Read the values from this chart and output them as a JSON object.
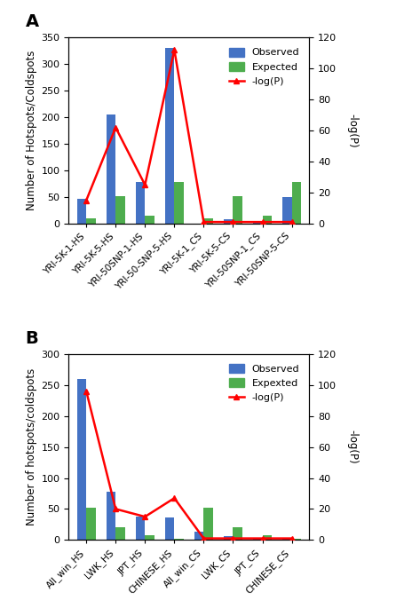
{
  "panel_A": {
    "label": "A",
    "categories": [
      "YRI-5K-1-HS",
      "YRI-5K-5-HS",
      "YRI-50SNP-1-HS",
      "YRI-50-SNP-5-HS",
      "YRI-5K-1_CS",
      "YRI-5K-5-CS",
      "YRI-50SNP-1_CS",
      "YRI-50SNP-5-CS"
    ],
    "observed": [
      47,
      205,
      78,
      330,
      0,
      8,
      5,
      50
    ],
    "expected": [
      10,
      52,
      15,
      78,
      10,
      52,
      15,
      78
    ],
    "log_p": [
      15,
      62,
      25,
      112,
      1,
      1,
      1,
      1
    ],
    "ylabel_left": "Number of Hotspots/Coldspots",
    "ylim_left": [
      0,
      350
    ],
    "ylim_right": [
      0,
      120
    ],
    "yticks_left": [
      0,
      50,
      100,
      150,
      200,
      250,
      300,
      350
    ],
    "yticks_right": [
      0,
      20,
      40,
      60,
      80,
      100,
      120
    ],
    "legend_labels": [
      "Observed",
      "Expected",
      "-log(P)"
    ]
  },
  "panel_B": {
    "label": "B",
    "categories": [
      "All_win_HS",
      "LWK_HS",
      "JPT_HS",
      "CHINESE_HS",
      "All_win_CS",
      "LWK_CS",
      "JPT_CS",
      "CHINESE_CS"
    ],
    "observed": [
      260,
      78,
      38,
      36,
      13,
      6,
      2,
      2
    ],
    "expected": [
      52,
      20,
      7,
      2,
      52,
      20,
      7,
      2
    ],
    "log_p": [
      96,
      20,
      15,
      27,
      1,
      1,
      1,
      1
    ],
    "ylabel_left": "Number of hotspots/coldspots",
    "ylim_left": [
      0,
      300
    ],
    "ylim_right": [
      0,
      120
    ],
    "yticks_left": [
      0,
      50,
      100,
      150,
      200,
      250,
      300
    ],
    "yticks_right": [
      0,
      20,
      40,
      60,
      80,
      100,
      120
    ],
    "legend_labels": [
      "Observed",
      "Expexted",
      "-log(P)"
    ]
  },
  "bar_width": 0.32,
  "color_observed": "#4472C4",
  "color_expected": "#4EAD4E",
  "color_logp": "#FF0000",
  "marker_logp": "^",
  "bg_color": "#FFFFFF",
  "figsize": [
    4.55,
    6.85
  ],
  "dpi": 100
}
